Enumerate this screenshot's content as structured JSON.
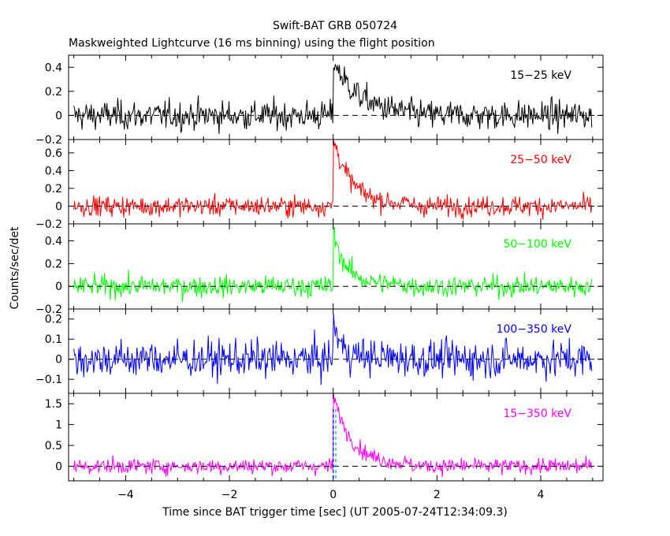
{
  "chart_data": {
    "type": "line",
    "title": "Swift-BAT GRB 050724",
    "subtitle": "Maskweighted Lightcurve (16 ms binning) using the flight position",
    "xlabel": "Time since BAT trigger time [sec] (UT 2005-07-24T12:34:09.3)",
    "ylabel": "Counts/sec/det",
    "xlim": [
      -5.1,
      5.2
    ],
    "x_ticks": [
      -4,
      -2,
      0,
      2,
      4
    ],
    "x_tick_labels": [
      "−4",
      "−2",
      "0",
      "2",
      "4"
    ],
    "grid": false,
    "bin_seconds": 0.016,
    "panels": [
      {
        "band": "15−25 keV",
        "color": "#000000",
        "ylim": [
          -0.2,
          0.5
        ],
        "y_ticks": [
          -0.2,
          0,
          0.2,
          0.4
        ],
        "y_tick_labels": [
          "−0.2",
          "0",
          "0.2",
          "0.4"
        ],
        "noise": 0.085,
        "peak": 0.4,
        "decay": 0.45
      },
      {
        "band": "25−50 keV",
        "color": "#ff0000",
        "ylim": [
          -0.2,
          0.75
        ],
        "y_ticks": [
          -0.2,
          0,
          0.2,
          0.4,
          0.6
        ],
        "y_tick_labels": [
          "−0.2",
          "0",
          "0.2",
          "0.4",
          "0.6"
        ],
        "noise": 0.08,
        "peak": 0.68,
        "decay": 0.3
      },
      {
        "band": "50−100 keV",
        "color": "#00ff00",
        "ylim": [
          -0.2,
          0.55
        ],
        "y_ticks": [
          -0.2,
          0,
          0.2,
          0.4
        ],
        "y_tick_labels": [
          "−0.2",
          "0",
          "0.2",
          "0.4"
        ],
        "noise": 0.065,
        "peak": 0.42,
        "decay": 0.22
      },
      {
        "band": "100−350 keV",
        "color": "#0000ff",
        "ylim": [
          -0.17,
          0.25
        ],
        "y_ticks": [
          -0.1,
          0,
          0.1,
          0.2
        ],
        "y_tick_labels": [
          "−0.1",
          "0",
          "0.1",
          "0.2"
        ],
        "noise": 0.065,
        "peak": 0.18,
        "decay": 0.12
      },
      {
        "band": "15−350 keV",
        "color": "#ff00ff",
        "ylim": [
          -0.35,
          1.75
        ],
        "y_ticks": [
          0,
          0.5,
          1,
          1.5
        ],
        "y_tick_labels": [
          "0",
          "0.5",
          "1",
          "1.5"
        ],
        "noise": 0.13,
        "peak": 1.5,
        "decay": 0.32
      }
    ],
    "markers": [
      {
        "x": 0.0,
        "style": "dashed",
        "color": "#0000ff"
      },
      {
        "x": 0.05,
        "style": "dashed",
        "color": "#00bbbb"
      }
    ]
  }
}
